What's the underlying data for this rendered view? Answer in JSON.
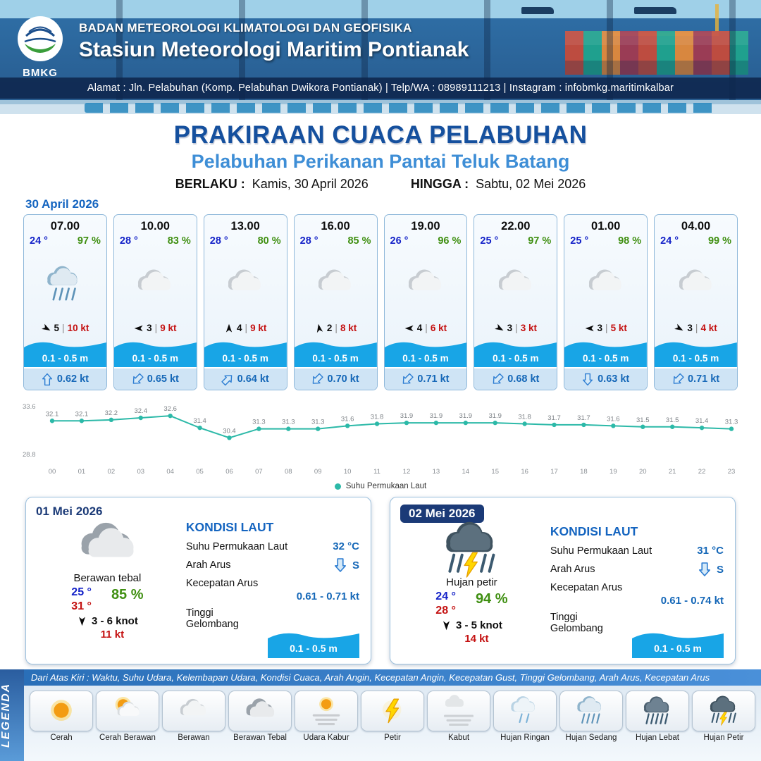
{
  "header": {
    "logo_text": "BMKG",
    "agency": "BADAN METEOROLOGI KLIMATOLOGI DAN GEOFISIKA",
    "station": "Stasiun Meteorologi Maritim Pontianak",
    "address": "Alamat : Jln. Pelabuhan (Komp. Pelabuhan Dwikora Pontianak) | Telp/WA : 08989111213 | Instagram : infobmkg.maritimkalbar"
  },
  "title": {
    "main": "PRAKIRAAN CUACA PELABUHAN",
    "subtitle": "Pelabuhan Perikanan Pantai Teluk Batang",
    "berlaku_label": "BERLAKU :",
    "berlaku_value": "Kamis, 30 April 2026",
    "hingga_label": "HINGGA :",
    "hingga_value": "Sabtu, 02 Mei 2026"
  },
  "forecast_date": "30 April 2026",
  "hourly_cards": [
    {
      "time": "07.00",
      "temp": "24 °",
      "humidity": "97 %",
      "icon": "hujan-sedang",
      "wind_speed": "5",
      "gust": "10 kt",
      "wind_dir_deg": 30,
      "wave": "0.1 - 0.5 m",
      "current": "0.62 kt",
      "current_dir_deg": 0
    },
    {
      "time": "10.00",
      "temp": "28 °",
      "humidity": "83 %",
      "icon": "berawan",
      "wind_speed": "3",
      "gust": "9 kt",
      "wind_dir_deg": 180,
      "wave": "0.1 - 0.5 m",
      "current": "0.65 kt",
      "current_dir_deg": 225
    },
    {
      "time": "13.00",
      "temp": "28 °",
      "humidity": "80 %",
      "icon": "berawan",
      "wind_speed": "4",
      "gust": "9 kt",
      "wind_dir_deg": -90,
      "wave": "0.1 - 0.5 m",
      "current": "0.64 kt",
      "current_dir_deg": 45
    },
    {
      "time": "16.00",
      "temp": "28 °",
      "humidity": "85 %",
      "icon": "berawan",
      "wind_speed": "2",
      "gust": "8 kt",
      "wind_dir_deg": -100,
      "wave": "0.1 - 0.5 m",
      "current": "0.70 kt",
      "current_dir_deg": 225
    },
    {
      "time": "19.00",
      "temp": "26 °",
      "humidity": "96 %",
      "icon": "berawan",
      "wind_speed": "4",
      "gust": "6 kt",
      "wind_dir_deg": 180,
      "wave": "0.1 - 0.5 m",
      "current": "0.71 kt",
      "current_dir_deg": 225
    },
    {
      "time": "22.00",
      "temp": "25 °",
      "humidity": "97 %",
      "icon": "berawan",
      "wind_speed": "3",
      "gust": "3 kt",
      "wind_dir_deg": 30,
      "wave": "0.1 - 0.5 m",
      "current": "0.68 kt",
      "current_dir_deg": 225
    },
    {
      "time": "01.00",
      "temp": "25 °",
      "humidity": "98 %",
      "icon": "berawan",
      "wind_speed": "3",
      "gust": "5 kt",
      "wind_dir_deg": 180,
      "wave": "0.1 - 0.5 m",
      "current": "0.63 kt",
      "current_dir_deg": 180
    },
    {
      "time": "04.00",
      "temp": "24 °",
      "humidity": "99 %",
      "icon": "berawan",
      "wind_speed": "3",
      "gust": "4 kt",
      "wind_dir_deg": 30,
      "wave": "0.1 - 0.5 m",
      "current": "0.71 kt",
      "current_dir_deg": 225
    }
  ],
  "chart_data": {
    "type": "line",
    "series_name": "Suhu Permukaan Laut",
    "x": [
      "00",
      "01",
      "02",
      "03",
      "04",
      "05",
      "06",
      "07",
      "08",
      "09",
      "10",
      "11",
      "12",
      "13",
      "14",
      "15",
      "16",
      "17",
      "18",
      "19",
      "20",
      "21",
      "22",
      "23"
    ],
    "values": [
      32.1,
      32.1,
      32.2,
      32.4,
      32.6,
      31.4,
      30.4,
      31.3,
      31.3,
      31.3,
      31.6,
      31.8,
      31.9,
      31.9,
      31.9,
      31.9,
      31.8,
      31.7,
      31.7,
      31.6,
      31.5,
      31.5,
      31.4,
      31.3
    ],
    "ylim": [
      28.8,
      33.6
    ],
    "y_ticks": [
      "33.6",
      "28.8"
    ],
    "line_color": "#2cb9a8",
    "grid": false,
    "legend_position": "bottom"
  },
  "sea_labels": {
    "heading": "KONDISI LAUT",
    "sst": "Suhu Permukaan Laut",
    "arah": "Arah Arus",
    "kecepatan": "Kecepatan Arus",
    "gelombang": "Tinggi Gelombang"
  },
  "day_cards": [
    {
      "date": "01 Mei 2026",
      "date_badge": false,
      "icon": "berawan-tebal",
      "condition": "Berawan tebal",
      "temp_min": "25 °",
      "temp_max": "31 °",
      "humidity": "85 %",
      "wind": "3  - 6 knot",
      "gust": "11 kt",
      "sst": "32 °C",
      "arah": "S",
      "kecepatan": "0.61 - 0.71 kt",
      "gelombang": "0.1 - 0.5 m"
    },
    {
      "date": "02 Mei 2026",
      "date_badge": true,
      "icon": "hujan-petir",
      "condition": "Hujan petir",
      "temp_min": "24 °",
      "temp_max": "28 °",
      "humidity": "94 %",
      "wind": "3  - 5 knot",
      "gust": "14 kt",
      "sst": "31 °C",
      "arah": "S",
      "kecepatan": "0.61 - 0.74 kt",
      "gelombang": "0.1 - 0.5 m"
    }
  ],
  "legend": {
    "title": "LEGENDA",
    "note": "Dari Atas Kiri : Waktu, Suhu Udara, Kelembapan Udara, Kondisi Cuaca, Arah Angin, Kecepatan Angin, Kecepatan Gust, Tinggi Gelombang, Arah Arus, Kecepatan Arus",
    "items": [
      {
        "label": "Cerah",
        "icon": "cerah"
      },
      {
        "label": "Cerah Berawan",
        "icon": "cerah-berawan"
      },
      {
        "label": "Berawan",
        "icon": "berawan"
      },
      {
        "label": "Berawan Tebal",
        "icon": "berawan-tebal"
      },
      {
        "label": "Udara Kabur",
        "icon": "udara-kabur"
      },
      {
        "label": "Petir",
        "icon": "petir"
      },
      {
        "label": "Kabut",
        "icon": "kabut"
      },
      {
        "label": "Hujan Ringan",
        "icon": "hujan-ringan"
      },
      {
        "label": "Hujan Sedang",
        "icon": "hujan-sedang"
      },
      {
        "label": "Hujan Lebat",
        "icon": "hujan-lebat"
      },
      {
        "label": "Hujan Petir",
        "icon": "hujan-petir"
      }
    ]
  },
  "colors": {
    "wave_blue": "#18a5e6",
    "header_navy": "#27598c",
    "title_blue": "#15509e",
    "subtitle_blue": "#3e8ed6",
    "temp_blue": "#1422c8",
    "humidity_green": "#3f8f11",
    "gust_red": "#c41111",
    "chart_teal": "#2cb9a8"
  }
}
